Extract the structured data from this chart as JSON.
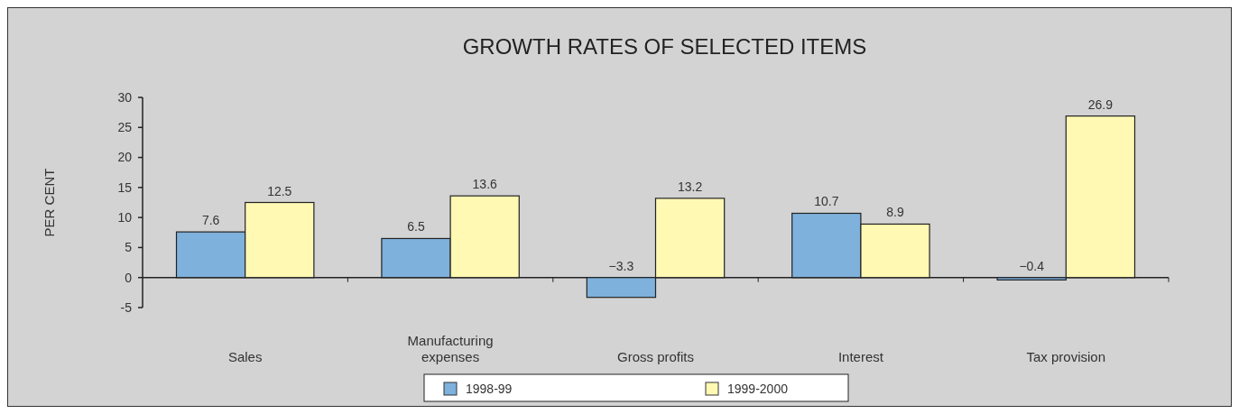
{
  "chart_data": {
    "type": "bar",
    "title": "GROWTH RATES OF SELECTED ITEMS",
    "ylabel": "PER CENT",
    "categories": [
      "Sales",
      "Manufacturing expenses",
      "Gross profits",
      "Interest",
      "Tax provision"
    ],
    "series": [
      {
        "name": "1998-99",
        "color": "#7eb1dc",
        "values": [
          7.6,
          6.5,
          -3.3,
          10.7,
          -0.4
        ]
      },
      {
        "name": "1999-2000",
        "color": "#fff9b4",
        "values": [
          12.5,
          13.6,
          13.2,
          8.9,
          26.9
        ]
      }
    ],
    "ylim": [
      -5,
      30
    ],
    "yticks": [
      -5,
      0,
      5,
      10,
      15,
      20,
      25,
      30
    ],
    "data_labels": true,
    "legend": "bottom"
  }
}
